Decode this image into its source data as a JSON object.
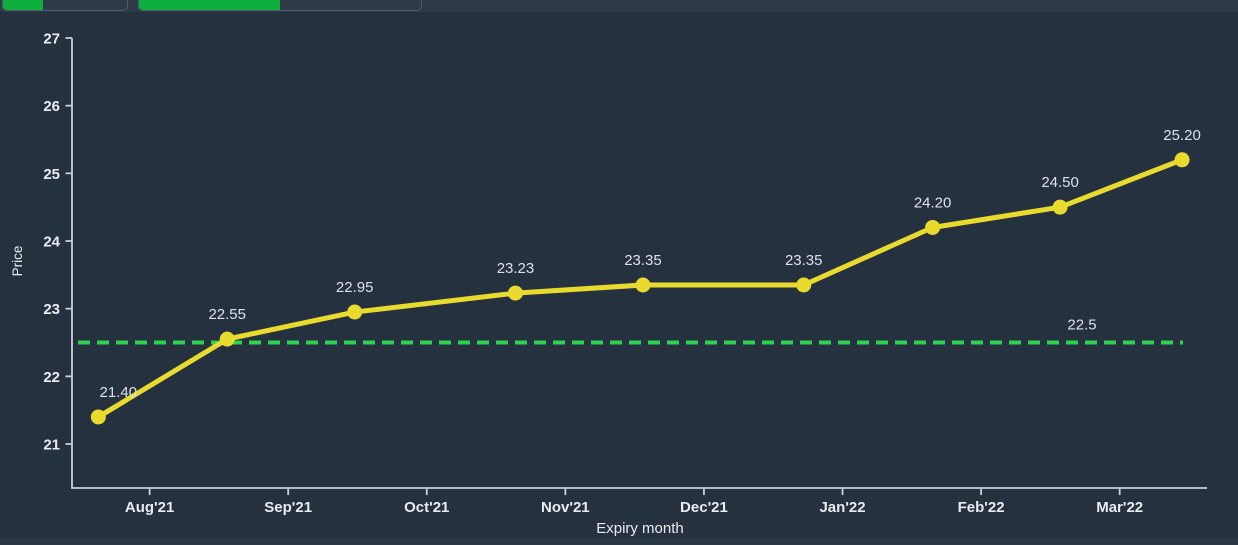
{
  "topbar": {
    "controls": [
      {
        "name": "toolbar-button-1",
        "fill_percent": 32.5
      },
      {
        "name": "toolbar-button-2",
        "fill_percent": 50
      }
    ]
  },
  "chart_data": {
    "type": "line",
    "title": "",
    "xlabel": "Expiry month",
    "ylabel": "Price",
    "x_tick_labels": [
      "Aug'21",
      "Sep'21",
      "Oct'21",
      "Nov'21",
      "Dec'21",
      "Jan'22",
      "Feb'22",
      "Mar'22"
    ],
    "x_tick_values": [
      1,
      2,
      3,
      4,
      5,
      6,
      7,
      8
    ],
    "xlim": [
      0.44,
      8.63
    ],
    "ylim": [
      20.35,
      27
    ],
    "y_ticks": [
      21,
      22,
      23,
      24,
      25,
      26,
      27
    ],
    "grid": false,
    "legend": "none",
    "series": [
      {
        "name": "price",
        "color": "#E9DB2E",
        "x": [
          0.63,
          1.56,
          2.48,
          3.64,
          4.56,
          5.72,
          6.65,
          7.57,
          8.45
        ],
        "values": [
          21.4,
          22.55,
          22.95,
          23.23,
          23.35,
          23.35,
          24.2,
          24.5,
          25.2
        ],
        "point_labels": [
          "21.40",
          "22.55",
          "22.95",
          "23.23",
          "23.35",
          "23.35",
          "24.20",
          "24.50",
          "25.20"
        ]
      }
    ],
    "reference_line": {
      "value": 22.5,
      "label": "22.5",
      "color": "#2FD24F",
      "style": "dashed"
    }
  },
  "colors": {
    "bg_main": "#263140",
    "bg_strip": "#2E3A48",
    "bg_bottom": "#2C3745",
    "btn_border": "#4E5B6E",
    "green": "#0EAF3D",
    "ref_green": "#2FD24F",
    "yellow": "#E9DB2E",
    "axis": "#C9CFD5",
    "tick_text": "#E9ECEE",
    "label_text": "#DCE1E6"
  }
}
